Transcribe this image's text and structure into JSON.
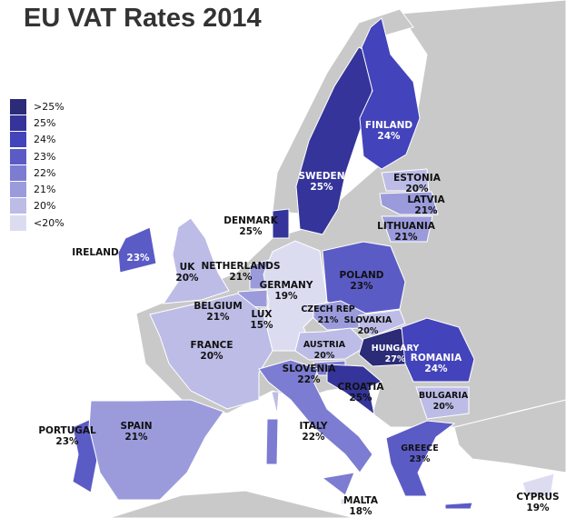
{
  "title": "EU VAT Rates 2014",
  "colors": {
    "sea": "#ffffff",
    "non_eu_land": "#c9c9c9",
    "border": "#ffffff"
  },
  "legend": [
    {
      "label": ">25%",
      "color": "#2b2b78"
    },
    {
      "label": "25%",
      "color": "#34349a"
    },
    {
      "label": "24%",
      "color": "#4343bb"
    },
    {
      "label": "23%",
      "color": "#5b5bc6"
    },
    {
      "label": "22%",
      "color": "#7c7cd2"
    },
    {
      "label": "21%",
      "color": "#9b9bdc"
    },
    {
      "label": "20%",
      "color": "#bcbce7"
    },
    {
      "label": "<20%",
      "color": "#dcdcf1"
    }
  ],
  "countries": [
    {
      "name": "SWEDEN",
      "rate": "25%"
    },
    {
      "name": "FINLAND",
      "rate": "24%"
    },
    {
      "name": "ESTONIA",
      "rate": "20%"
    },
    {
      "name": "LATVIA",
      "rate": "21%"
    },
    {
      "name": "LITHUANIA",
      "rate": "21%"
    },
    {
      "name": "DENMARK",
      "rate": "25%"
    },
    {
      "name": "IRELAND",
      "rate": "23%"
    },
    {
      "name": "UK",
      "rate": "20%"
    },
    {
      "name": "NETHERLANDS",
      "rate": "21%"
    },
    {
      "name": "GERMANY",
      "rate": "19%"
    },
    {
      "name": "POLAND",
      "rate": "23%"
    },
    {
      "name": "BELGIUM",
      "rate": "21%"
    },
    {
      "name": "LUX",
      "rate": "15%"
    },
    {
      "name": "CZECH REP",
      "rate": "21%"
    },
    {
      "name": "SLOVAKIA",
      "rate": "20%"
    },
    {
      "name": "FRANCE",
      "rate": "20%"
    },
    {
      "name": "AUSTRIA",
      "rate": "20%"
    },
    {
      "name": "HUNGARY",
      "rate": "27%"
    },
    {
      "name": "ROMANIA",
      "rate": "24%"
    },
    {
      "name": "SLOVENIA",
      "rate": "22%"
    },
    {
      "name": "CROATIA",
      "rate": "25%"
    },
    {
      "name": "BULGARIA",
      "rate": "20%"
    },
    {
      "name": "PORTUGAL",
      "rate": "23%"
    },
    {
      "name": "SPAIN",
      "rate": "21%"
    },
    {
      "name": "ITALY",
      "rate": "22%"
    },
    {
      "name": "GREECE",
      "rate": "23%"
    },
    {
      "name": "MALTA",
      "rate": "18%"
    },
    {
      "name": "CYPRUS",
      "rate": "19%"
    }
  ]
}
